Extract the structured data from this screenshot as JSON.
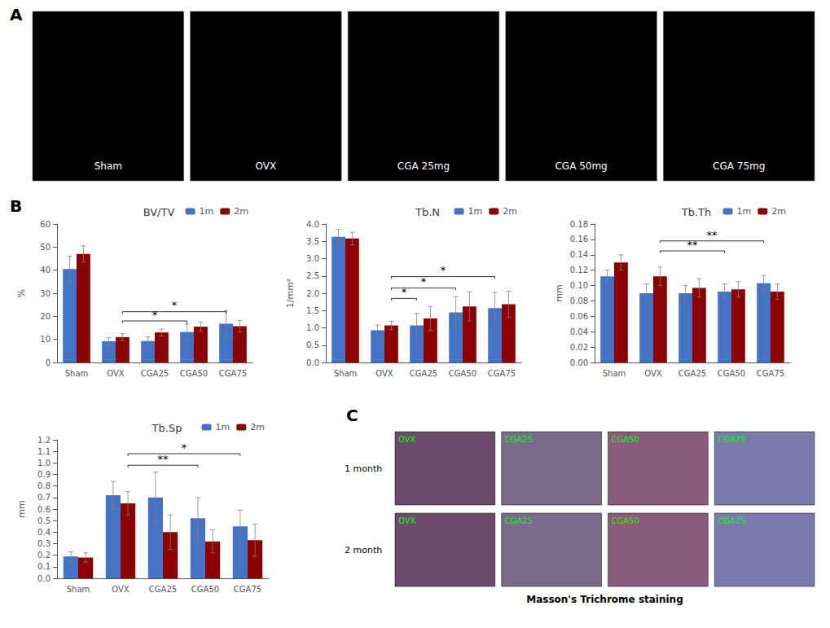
{
  "chart_data": [
    {
      "type": "images",
      "title": "A",
      "annotations": [
        "Sham",
        "OVX",
        "CGA 25mg",
        "CGA 50mg",
        "CGA 75mg"
      ]
    },
    {
      "type": "bar",
      "title": "BV/TV",
      "ylabel": "%",
      "annotations": [
        "B"
      ],
      "categories": [
        "Sham",
        "OVX",
        "CGA25",
        "CGA50",
        "CGA75"
      ],
      "series": [
        {
          "name": "1m",
          "color": "#4472C4",
          "values": [
            40.5,
            9.2,
            9.3,
            13.2,
            16.8
          ],
          "errors": [
            5.5,
            1.5,
            1.8,
            3.5,
            5.5
          ]
        },
        {
          "name": "2m",
          "color": "#8B0000",
          "values": [
            47.0,
            11.0,
            13.0,
            15.5,
            15.7
          ],
          "errors": [
            3.5,
            1.5,
            1.5,
            2.0,
            2.5
          ]
        }
      ],
      "ylim": [
        0,
        60
      ],
      "yticks": [
        0,
        10,
        20,
        30,
        40,
        50,
        60
      ],
      "grid": false,
      "legend": "upper-right",
      "brackets": [
        {
          "from": "OVX",
          "to": "CGA75",
          "y": 22,
          "label": "*"
        },
        {
          "from": "OVX",
          "to": "CGA50",
          "y": 18,
          "label": "*"
        }
      ]
    },
    {
      "type": "bar",
      "title": "Tb.N",
      "ylabel": "1/mm²",
      "categories": [
        "Sham",
        "OVX",
        "CGA25",
        "CGA50",
        "CGA75"
      ],
      "series": [
        {
          "name": "1m",
          "color": "#4472C4",
          "values": [
            3.63,
            0.93,
            1.07,
            1.45,
            1.57
          ],
          "errors": [
            0.22,
            0.15,
            0.35,
            0.45,
            0.45
          ]
        },
        {
          "name": "2m",
          "color": "#8B0000",
          "values": [
            3.58,
            1.07,
            1.27,
            1.62,
            1.68
          ],
          "errors": [
            0.18,
            0.12,
            0.35,
            0.42,
            0.38
          ]
        }
      ],
      "ylim": [
        0,
        4
      ],
      "yticks": [
        {
          "value": 0,
          "label": "0.0"
        },
        0.5,
        {
          "value": 1.0,
          "label": "1.0"
        },
        1.5,
        {
          "value": 2.0,
          "label": "2.0"
        },
        2.5,
        {
          "value": 3.0,
          "label": "3.0"
        },
        3.5,
        {
          "value": 4.0,
          "label": "4.0"
        }
      ],
      "grid": false,
      "legend": "upper-right",
      "brackets": [
        {
          "from": "OVX",
          "to": "CGA25",
          "y": 1.85,
          "label": "*"
        },
        {
          "from": "OVX",
          "to": "CGA50",
          "y": 2.15,
          "label": "*"
        },
        {
          "from": "OVX",
          "to": "CGA75",
          "y": 2.48,
          "label": "*"
        }
      ]
    },
    {
      "type": "bar",
      "title": "Tb.Th",
      "ylabel": "mm",
      "categories": [
        "Sham",
        "OVX",
        "CGA25",
        "CGA50",
        "CGA75"
      ],
      "series": [
        {
          "name": "1m",
          "color": "#4472C4",
          "values": [
            0.112,
            0.09,
            0.09,
            0.092,
            0.103
          ],
          "errors": [
            0.008,
            0.012,
            0.01,
            0.01,
            0.01
          ]
        },
        {
          "name": "2m",
          "color": "#8B0000",
          "values": [
            0.13,
            0.112,
            0.097,
            0.095,
            0.092
          ],
          "errors": [
            0.01,
            0.012,
            0.012,
            0.01,
            0.01
          ]
        }
      ],
      "ylim": [
        0,
        0.18
      ],
      "yticks": [
        {
          "value": 0,
          "label": "0.00"
        },
        0.02,
        0.04,
        0.06,
        0.08,
        {
          "value": 0.1,
          "label": "0.10"
        },
        0.12,
        0.14,
        0.16,
        0.18
      ],
      "grid": false,
      "legend": "upper-right",
      "brackets": [
        {
          "from": "OVX",
          "to": "CGA50",
          "y": 0.145,
          "label": "**"
        },
        {
          "from": "OVX",
          "to": "CGA75",
          "y": 0.158,
          "label": "**"
        }
      ]
    },
    {
      "type": "bar",
      "title": "Tb.Sp",
      "ylabel": "mm",
      "categories": [
        "Sham",
        "OVX",
        "CGA25",
        "CGA50",
        "CGA75"
      ],
      "series": [
        {
          "name": "1m",
          "color": "#4472C4",
          "values": [
            0.19,
            0.72,
            0.7,
            0.52,
            0.45
          ],
          "errors": [
            0.04,
            0.12,
            0.22,
            0.18,
            0.14
          ]
        },
        {
          "name": "2m",
          "color": "#8B0000",
          "values": [
            0.18,
            0.65,
            0.4,
            0.32,
            0.33
          ],
          "errors": [
            0.04,
            0.1,
            0.15,
            0.1,
            0.14
          ]
        }
      ],
      "ylim": [
        0,
        1.2
      ],
      "yticks": [
        {
          "value": 0,
          "label": "0.0"
        },
        0.1,
        0.2,
        0.3,
        0.4,
        0.5,
        0.6,
        0.7,
        0.8,
        0.9,
        {
          "value": 1.0,
          "label": "1.0"
        },
        1.1,
        1.2
      ],
      "grid": false,
      "legend": "upper-right",
      "brackets": [
        {
          "from": "OVX",
          "to": "CGA50",
          "y": 0.98,
          "label": "**"
        },
        {
          "from": "OVX",
          "to": "CGA75",
          "y": 1.08,
          "label": "*"
        }
      ]
    },
    {
      "type": "images",
      "title": "C",
      "categories": [
        "OVX",
        "CGA25",
        "CGA50",
        "CGA75"
      ],
      "row_labels": [
        "1 month",
        "2 month"
      ],
      "annotations": [
        "Masson's Trichrome staining"
      ]
    }
  ]
}
